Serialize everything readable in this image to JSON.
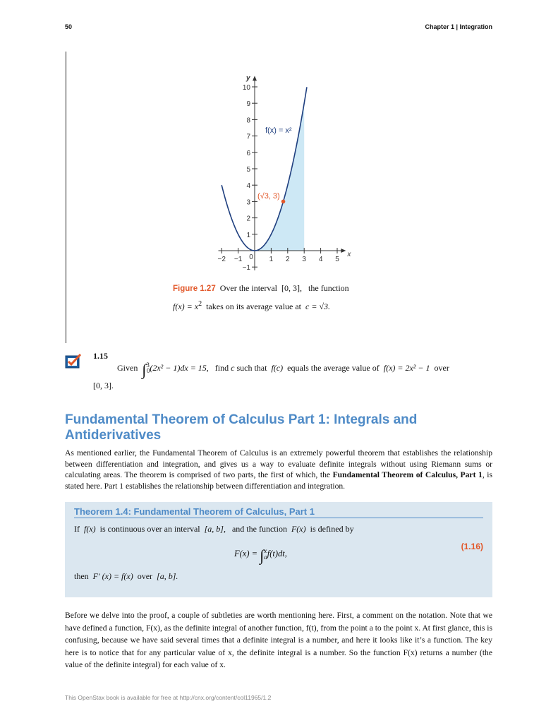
{
  "header": {
    "page_number": "50",
    "chapter": "Chapter 1 | Integration"
  },
  "chart_data": {
    "type": "line",
    "xlabel": "x",
    "ylabel": "y",
    "xlim": [
      -2.2,
      5.4
    ],
    "ylim": [
      -1.2,
      10.5
    ],
    "xticks": [
      -2,
      -1,
      0,
      1,
      2,
      3,
      4,
      5
    ],
    "yticks": [
      -1,
      1,
      2,
      3,
      4,
      5,
      6,
      7,
      8,
      9,
      10
    ],
    "curve_label": "f(x) = x²",
    "curve_domain": [
      -2,
      3.16
    ],
    "shaded_interval": [
      0,
      3
    ],
    "point": {
      "x": 1.732,
      "y": 3,
      "label": "(√3, 3)"
    },
    "colors": {
      "curve": "#1f3f7f",
      "shade": "#cde8f5",
      "point": "#e2582a"
    }
  },
  "figure": {
    "label": "Figure 1.27",
    "text1": "Over the interval",
    "interval": "[0, 3],",
    "text2": "the function",
    "fx": "f(x) = x",
    "exp": "2",
    "text3": "takes on its average value at",
    "c": "c = √3."
  },
  "exercise": {
    "number": "1.15",
    "given": "Given",
    "integral_upper": "3",
    "integral_lower": "0",
    "integrand": "(2x² − 1)dx = 15,",
    "find": "find",
    "c": "c",
    "such": "such that",
    "fc": "f(c)",
    "avg": "equals the average value of",
    "fx": "f(x) = 2x² − 1",
    "over": "over",
    "interval": "[0, 3]."
  },
  "section": {
    "title": "Fundamental Theorem of Calculus Part 1: Integrals and Antiderivatives",
    "intro_a": "As mentioned earlier, the Fundamental Theorem of Calculus is an extremely powerful theorem that establishes the relationship between differentiation and integration, and gives us a way to evaluate definite integrals without using Riemann sums or calculating areas. The theorem is comprised of two parts, the first of which, the ",
    "intro_bold": "Fundamental Theorem of Calculus, Part 1",
    "intro_b": ", is stated here. Part 1 establishes the relationship between differentiation and integration."
  },
  "theorem": {
    "title": "Theorem 1.4: Fundamental Theorem of Calculus, Part 1",
    "line1_a": "If",
    "fx": "f(x)",
    "line1_b": "is continuous over an interval",
    "ab": "[a, b],",
    "line1_c": "and the function",
    "Fx": "F(x)",
    "line1_d": "is defined by",
    "eq_lhs": "F(x) =",
    "eq_upper": "x",
    "eq_lower": "a",
    "eq_rhs": "f(t)dt,",
    "eq_number": "(1.16)",
    "line3_a": "then",
    "line3_eq": "F′ (x) = f(x)",
    "line3_b": "over",
    "line3_ab": "[a, b]."
  },
  "body": {
    "p1": "Before we delve into the proof, a couple of subtleties are worth mentioning here. First, a comment on the notation. Note that we have defined a function, F(x), as the definite integral of another function, f(t), from the point a to the point x. At first glance, this is confusing, because we have said several times that a definite integral is a number, and here it looks like it’s a function. The key here is to notice that for any particular value of x, the definite integral is a number. So the function F(x) returns a number (the value of the definite integral) for each value of x."
  },
  "footer": "This OpenStax book is available for free at http://cnx.org/content/col11965/1.2"
}
